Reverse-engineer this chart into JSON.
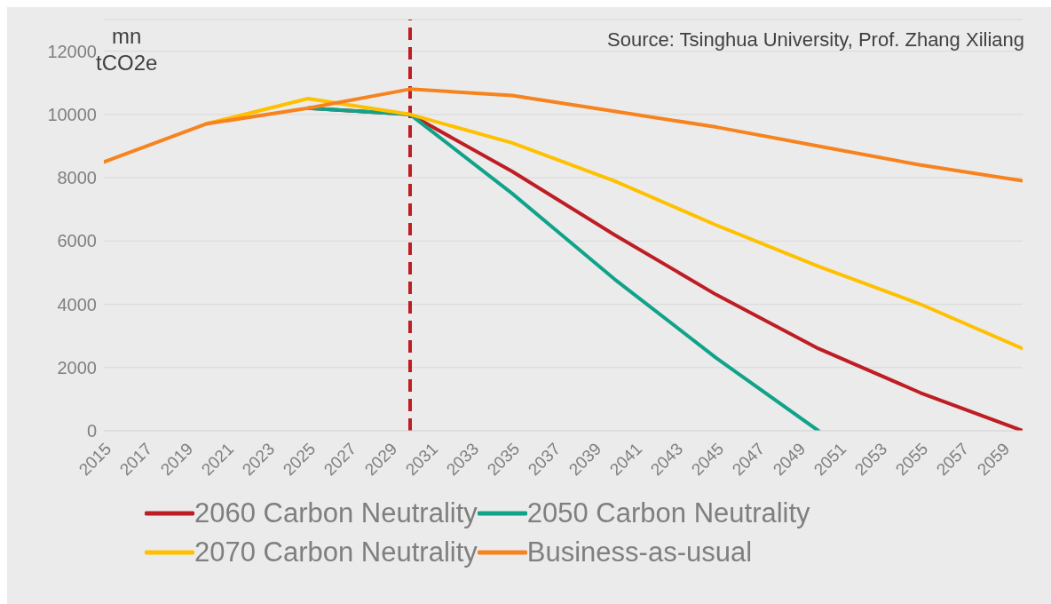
{
  "chart_data": {
    "type": "line",
    "ylabel": "mn tCO2e",
    "annotations": [
      "Source: Tsinghua University, Prof. Zhang Xiliang"
    ],
    "x": [
      2015,
      2020,
      2025,
      2030,
      2035,
      2040,
      2045,
      2050,
      2055,
      2060
    ],
    "series": [
      {
        "name": "2060 Carbon Neutrality",
        "color": "#be1e23",
        "values": [
          null,
          null,
          10200,
          10000,
          8200,
          6200,
          4300,
          2600,
          1200,
          0
        ]
      },
      {
        "name": "2050 Carbon Neutrality",
        "color": "#10a38a",
        "values": [
          null,
          null,
          10200,
          10000,
          7500,
          4800,
          2300,
          0,
          null,
          null
        ]
      },
      {
        "name": "2070 Carbon Neutrality",
        "color": "#ffc000",
        "values": [
          null,
          9700,
          10500,
          10000,
          9100,
          7900,
          6500,
          5200,
          4000,
          2600
        ]
      },
      {
        "name": "Business-as-usual",
        "color": "#f7831e",
        "values": [
          8500,
          9700,
          10200,
          10800,
          10600,
          10100,
          9600,
          9000,
          8400,
          7900
        ]
      }
    ],
    "xlim": [
      2015,
      2060
    ],
    "xticks": [
      2015,
      2017,
      2019,
      2021,
      2023,
      2025,
      2027,
      2029,
      2031,
      2033,
      2035,
      2037,
      2039,
      2041,
      2043,
      2045,
      2047,
      2049,
      2051,
      2053,
      2055,
      2057,
      2059
    ],
    "ylim": [
      0,
      13000
    ],
    "yticks": [
      0,
      2000,
      4000,
      6000,
      8000,
      10000,
      12000
    ],
    "ref_lines": [
      {
        "axis": "x",
        "value": 2030,
        "color": "#be1e23",
        "line_style": "dashed"
      }
    ],
    "grid": "y",
    "legend": "bottom"
  }
}
